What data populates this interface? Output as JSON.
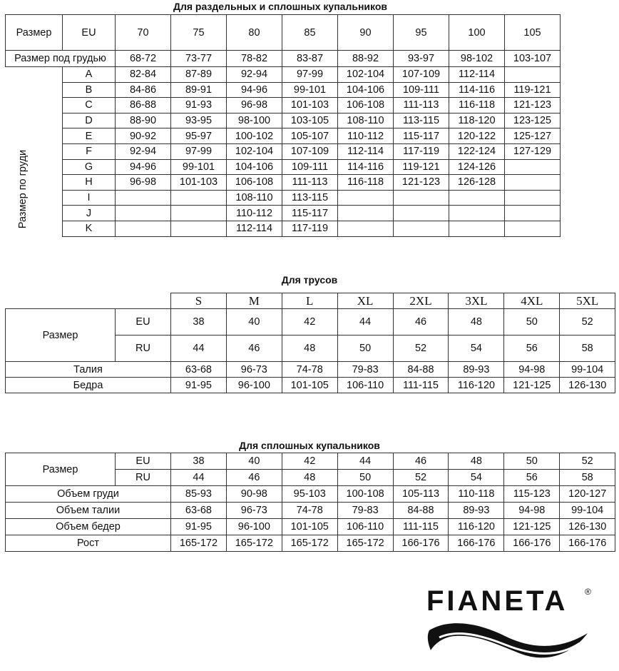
{
  "table1": {
    "title": "Для раздельных и сплошных купальников",
    "header": [
      "Размер",
      "EU",
      "70",
      "75",
      "80",
      "85",
      "90",
      "95",
      "100",
      "105"
    ],
    "underbust_label": "Размер под грудью",
    "underbust": [
      "68-72",
      "73-77",
      "78-82",
      "83-87",
      "88-92",
      "93-97",
      "98-102",
      "103-107"
    ],
    "bust_label": "Размер по груди",
    "rows": [
      {
        "cup": "A",
        "values": [
          "82-84",
          "87-89",
          "92-94",
          "97-99",
          "102-104",
          "107-109",
          "112-114",
          ""
        ]
      },
      {
        "cup": "B",
        "values": [
          "84-86",
          "89-91",
          "94-96",
          "99-101",
          "104-106",
          "109-111",
          "114-116",
          "119-121"
        ]
      },
      {
        "cup": "C",
        "values": [
          "86-88",
          "91-93",
          "96-98",
          "101-103",
          "106-108",
          "111-113",
          "116-118",
          "121-123"
        ]
      },
      {
        "cup": "D",
        "values": [
          "88-90",
          "93-95",
          "98-100",
          "103-105",
          "108-110",
          "113-115",
          "118-120",
          "123-125"
        ]
      },
      {
        "cup": "E",
        "values": [
          "90-92",
          "95-97",
          "100-102",
          "105-107",
          "110-112",
          "115-117",
          "120-122",
          "125-127"
        ]
      },
      {
        "cup": "F",
        "values": [
          "92-94",
          "97-99",
          "102-104",
          "107-109",
          "112-114",
          "117-119",
          "122-124",
          "127-129"
        ]
      },
      {
        "cup": "G",
        "values": [
          "94-96",
          "99-101",
          "104-106",
          "109-111",
          "114-116",
          "119-121",
          "124-126",
          ""
        ]
      },
      {
        "cup": "H",
        "values": [
          "96-98",
          "101-103",
          "106-108",
          "111-113",
          "116-118",
          "121-123",
          "126-128",
          ""
        ]
      },
      {
        "cup": "I",
        "values": [
          "",
          "",
          "108-110",
          "113-115",
          "",
          "",
          "",
          ""
        ]
      },
      {
        "cup": "J",
        "values": [
          "",
          "",
          "110-112",
          "115-117",
          "",
          "",
          "",
          ""
        ]
      },
      {
        "cup": "K",
        "values": [
          "",
          "",
          "112-114",
          "117-119",
          "",
          "",
          "",
          ""
        ]
      }
    ]
  },
  "table2": {
    "title": "Для трусов",
    "sizes": [
      "S",
      "M",
      "L",
      "XL",
      "2XL",
      "3XL",
      "4XL",
      "5XL"
    ],
    "size_label": "Размер",
    "eu_label": "EU",
    "eu": [
      "38",
      "40",
      "42",
      "44",
      "46",
      "48",
      "50",
      "52"
    ],
    "ru_label": "RU",
    "ru": [
      "44",
      "46",
      "48",
      "50",
      "52",
      "54",
      "56",
      "58"
    ],
    "rows": [
      {
        "label": "Талия",
        "values": [
          "63-68",
          "96-73",
          "74-78",
          "79-83",
          "84-88",
          "89-93",
          "94-98",
          "99-104"
        ]
      },
      {
        "label": "Бедра",
        "values": [
          "91-95",
          "96-100",
          "101-105",
          "106-110",
          "111-115",
          "116-120",
          "121-125",
          "126-130"
        ]
      }
    ]
  },
  "table3": {
    "title": "Для сплошных купальников",
    "size_label": "Размер",
    "eu_label": "EU",
    "eu": [
      "38",
      "40",
      "42",
      "44",
      "46",
      "48",
      "50",
      "52"
    ],
    "ru_label": "RU",
    "ru": [
      "44",
      "46",
      "48",
      "50",
      "52",
      "54",
      "56",
      "58"
    ],
    "rows": [
      {
        "label": "Объем груди",
        "values": [
          "85-93",
          "90-98",
          "95-103",
          "100-108",
          "105-113",
          "110-118",
          "115-123",
          "120-127"
        ]
      },
      {
        "label": "Объем талии",
        "values": [
          "63-68",
          "96-73",
          "74-78",
          "79-83",
          "84-88",
          "89-93",
          "94-98",
          "99-104"
        ]
      },
      {
        "label": "Объем бедер",
        "values": [
          "91-95",
          "96-100",
          "101-105",
          "106-110",
          "111-115",
          "116-120",
          "121-125",
          "126-130"
        ]
      },
      {
        "label": "Рост",
        "values": [
          "165-172",
          "165-172",
          "165-172",
          "165-172",
          "166-176",
          "166-176",
          "166-176",
          "166-176"
        ]
      }
    ]
  },
  "logo": {
    "text": "FIANETA",
    "mark": "®"
  }
}
